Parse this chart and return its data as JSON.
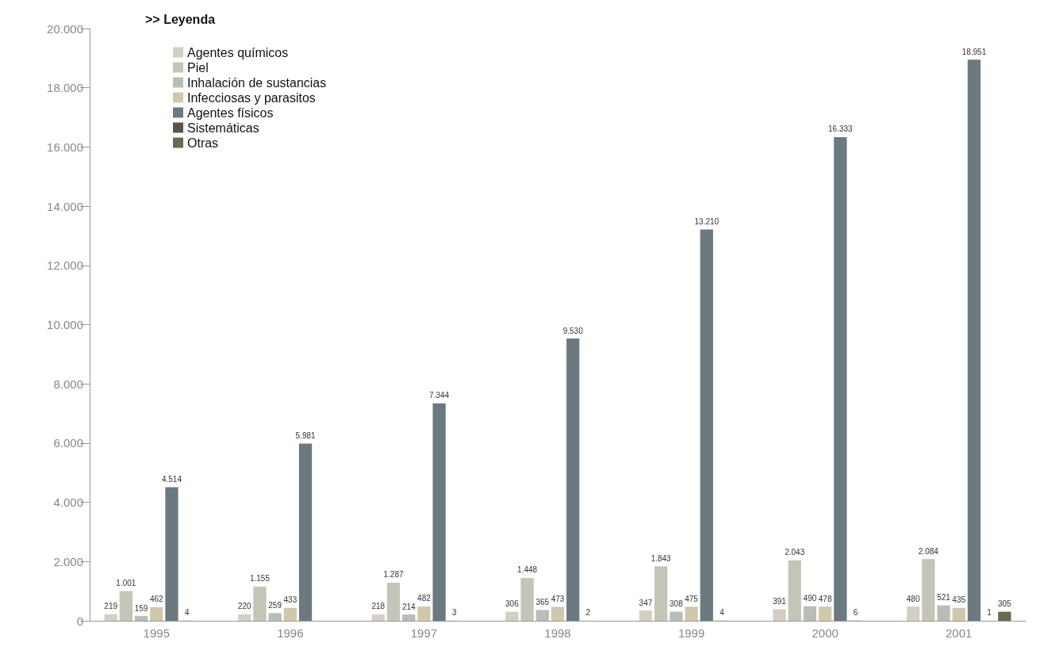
{
  "chart_data": {
    "type": "bar",
    "legend_title": ">> Leyenda",
    "legend": "top left",
    "categories": [
      "1995",
      "1996",
      "1997",
      "1998",
      "1999",
      "2000",
      "2001"
    ],
    "series": [
      {
        "name": "Agentes químicos",
        "color": "#d4cfc0",
        "values": [
          219,
          220,
          218,
          306,
          347,
          391,
          480
        ],
        "value_labels": [
          "219",
          "220",
          "218",
          "306",
          "347",
          "391",
          "480"
        ]
      },
      {
        "name": "Piel",
        "color": "#c3c5b5",
        "values": [
          1001,
          1155,
          1287,
          1448,
          1843,
          2043,
          2084
        ],
        "value_labels": [
          "1.001",
          "1.155",
          "1.287",
          "1.448",
          "1.843",
          "2.043",
          "2.084"
        ]
      },
      {
        "name": "Inhalación de sustancias",
        "color": "#b5bfb5",
        "values": [
          159,
          259,
          214,
          365,
          308,
          490,
          521
        ],
        "value_labels": [
          "159",
          "259",
          "214",
          "365",
          "308",
          "490",
          "521"
        ]
      },
      {
        "name": "Infecciosas y parasitos",
        "color": "#d0c8aa",
        "values": [
          462,
          433,
          482,
          473,
          475,
          478,
          435
        ],
        "value_labels": [
          "462",
          "433",
          "482",
          "473",
          "475",
          "478",
          "435"
        ]
      },
      {
        "name": "Agentes físicos",
        "color": "#6b7a80",
        "values": [
          4514,
          5981,
          7344,
          9530,
          13210,
          16333,
          18951
        ],
        "value_labels": [
          "4.514",
          "5.981",
          "7.344",
          "9.530",
          "13.210",
          "16.333",
          "18.951"
        ]
      },
      {
        "name": "Sistemáticas",
        "color": "#5c544c",
        "values": [
          4,
          null,
          3,
          2,
          4,
          6,
          1
        ],
        "value_labels": [
          "4",
          null,
          "3",
          "2",
          "4",
          "6",
          "1"
        ]
      },
      {
        "name": "Otras",
        "color": "#6a6a4c",
        "values": [
          null,
          null,
          null,
          null,
          null,
          null,
          305
        ],
        "value_labels": [
          null,
          null,
          null,
          null,
          null,
          null,
          "305"
        ]
      }
    ],
    "ylim": [
      0,
      20000
    ],
    "yticks": [
      {
        "value": 0,
        "label": "0"
      },
      {
        "value": 2000,
        "label": "2.000"
      },
      {
        "value": 4000,
        "label": "4.000"
      },
      {
        "value": 6000,
        "label": "6.000"
      },
      {
        "value": 8000,
        "label": "8.000"
      },
      {
        "value": 10000,
        "label": "10.000"
      },
      {
        "value": 12000,
        "label": "12.000"
      },
      {
        "value": 14000,
        "label": "14.000"
      },
      {
        "value": 16000,
        "label": "16.000"
      },
      {
        "value": 18000,
        "label": "18.000"
      },
      {
        "value": 20000,
        "label": "20.000"
      }
    ],
    "grid": false
  }
}
